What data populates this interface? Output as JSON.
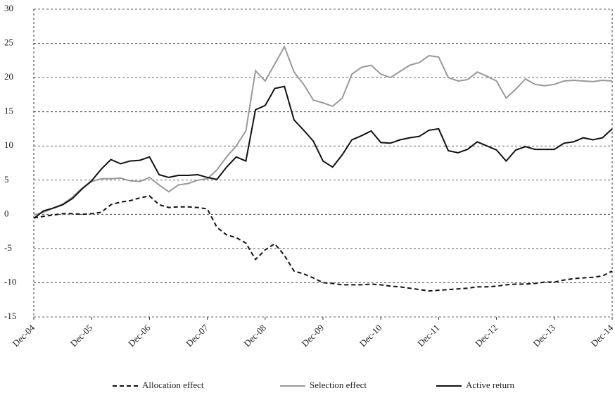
{
  "chart_data": {
    "type": "line",
    "categories": [
      "Dec-04",
      null,
      null,
      null,
      null,
      null,
      "Dec-05",
      null,
      null,
      null,
      null,
      null,
      "Dec-06",
      null,
      null,
      null,
      null,
      null,
      "Dec-07",
      null,
      null,
      null,
      null,
      null,
      "Dec-08",
      null,
      null,
      null,
      null,
      null,
      "Dec-09",
      null,
      null,
      null,
      null,
      null,
      "Dec-10",
      null,
      null,
      null,
      null,
      null,
      "Dec-11",
      null,
      null,
      null,
      null,
      null,
      "Dec-12",
      null,
      null,
      null,
      null,
      null,
      "Dec-13",
      null,
      null,
      null,
      null,
      null,
      "Dec-14"
    ],
    "series": [
      {
        "name": "Allocation effect",
        "color": "#111111",
        "dash": true,
        "values": [
          -0.5,
          -0.3,
          -0.1,
          0.1,
          0.1,
          0.0,
          0.1,
          0.3,
          1.4,
          1.8,
          2.0,
          2.4,
          2.7,
          1.4,
          1.0,
          1.1,
          1.1,
          1.0,
          0.8,
          -1.9,
          -3.0,
          -3.4,
          -4.2,
          -6.6,
          -5.2,
          -4.3,
          -6.0,
          -8.3,
          -8.7,
          -9.3,
          -10.0,
          -10.1,
          -10.3,
          -10.3,
          -10.3,
          -10.2,
          -10.3,
          -10.5,
          -10.6,
          -10.8,
          -11.0,
          -11.2,
          -11.1,
          -11.0,
          -10.9,
          -10.8,
          -10.6,
          -10.6,
          -10.5,
          -10.3,
          -10.2,
          -10.2,
          -10.1,
          -9.9,
          -9.9,
          -9.6,
          -9.4,
          -9.3,
          -9.2,
          -9.0,
          -8.3
        ]
      },
      {
        "name": "Selection effect",
        "color": "#999999",
        "dash": false,
        "values": [
          -0.1,
          0.3,
          0.9,
          1.5,
          2.5,
          3.8,
          4.8,
          5.2,
          5.2,
          5.3,
          4.9,
          4.8,
          5.4,
          4.3,
          3.3,
          4.3,
          4.5,
          5.0,
          5.2,
          6.5,
          8.4,
          10.0,
          12.2,
          21.0,
          19.5,
          22.0,
          24.5,
          20.8,
          19.0,
          16.7,
          16.3,
          15.8,
          17.0,
          20.5,
          21.5,
          21.8,
          20.5,
          20.0,
          20.9,
          21.8,
          22.2,
          23.2,
          23.0,
          20.0,
          19.5,
          19.7,
          20.8,
          20.2,
          19.5,
          17.0,
          18.3,
          19.8,
          19.0,
          18.8,
          19.0,
          19.5,
          19.6,
          19.5,
          19.4,
          19.6,
          19.5
        ]
      },
      {
        "name": "Active return",
        "color": "#111111",
        "dash": false,
        "values": [
          -0.6,
          0.5,
          0.9,
          1.4,
          2.3,
          3.7,
          4.9,
          6.6,
          8.0,
          7.4,
          7.8,
          7.9,
          8.4,
          5.8,
          5.4,
          5.7,
          5.7,
          5.8,
          5.4,
          5.1,
          6.9,
          8.4,
          7.8,
          15.3,
          15.9,
          18.4,
          18.7,
          13.8,
          12.3,
          10.7,
          7.8,
          6.9,
          8.7,
          10.9,
          11.5,
          12.2,
          10.5,
          10.4,
          10.9,
          11.2,
          11.4,
          12.3,
          12.5,
          9.3,
          9.0,
          9.5,
          10.6,
          10.0,
          9.4,
          7.8,
          9.4,
          9.9,
          9.5,
          9.5,
          9.5,
          10.4,
          10.6,
          11.2,
          10.9,
          11.2,
          12.5
        ]
      }
    ],
    "ylim": [
      -15,
      30
    ],
    "yticks": [
      -15,
      -10,
      -5,
      0,
      5,
      10,
      15,
      20,
      25,
      30
    ],
    "grid": true
  }
}
